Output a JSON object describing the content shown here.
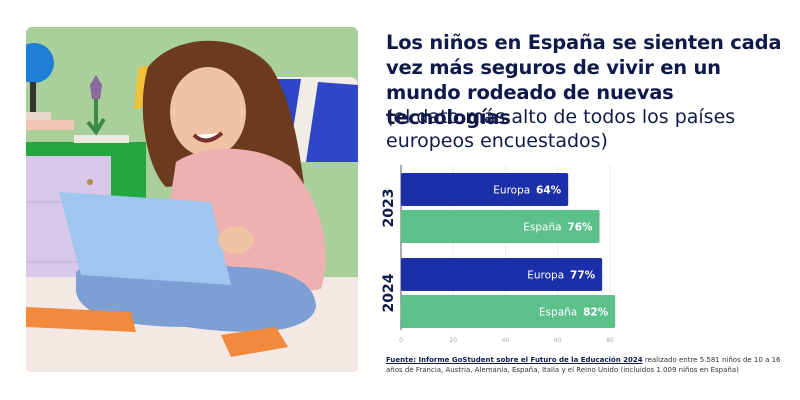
{
  "header": {
    "title": "Los niños en España se sienten cada vez más seguros de vivir en un mundo rodeado de nuevas tecnologías",
    "subtitle": "(el dato más alto de todos los países europeos encuestados)"
  },
  "photo": {
    "description": "Girl with long curly hair in pink sweater sitting cross-legged on a bed using a light blue laptop"
  },
  "chart_data": {
    "type": "bar",
    "orientation": "horizontal",
    "title": "",
    "xlabel": "",
    "ylabel": "",
    "xlim": [
      0,
      80
    ],
    "x_ticks": [
      "0",
      "20",
      "40",
      "60",
      "80"
    ],
    "grid": true,
    "groups": [
      {
        "label": "2023",
        "bars": [
          {
            "name": "Europa",
            "value": 64,
            "label": "64%"
          },
          {
            "name": "España",
            "value": 76,
            "label": "76%"
          }
        ]
      },
      {
        "label": "2024",
        "bars": [
          {
            "name": "Europa",
            "value": 77,
            "label": "77%"
          },
          {
            "name": "España",
            "value": 82,
            "label": "82%"
          }
        ]
      }
    ],
    "series_colors": {
      "Europa": "#1a2fa8",
      "España": "#5cc08a"
    }
  },
  "footer": {
    "source_link": "Fuente: Informe GoStudent sobre el Futuro de la Educación 2024",
    "source_text": " realizado entre 5.581 niños de 10 a 16 años de Francia, Austria, Alemania, España, Italia y el Reino Unido (incluidos 1.009 niños en España)"
  }
}
